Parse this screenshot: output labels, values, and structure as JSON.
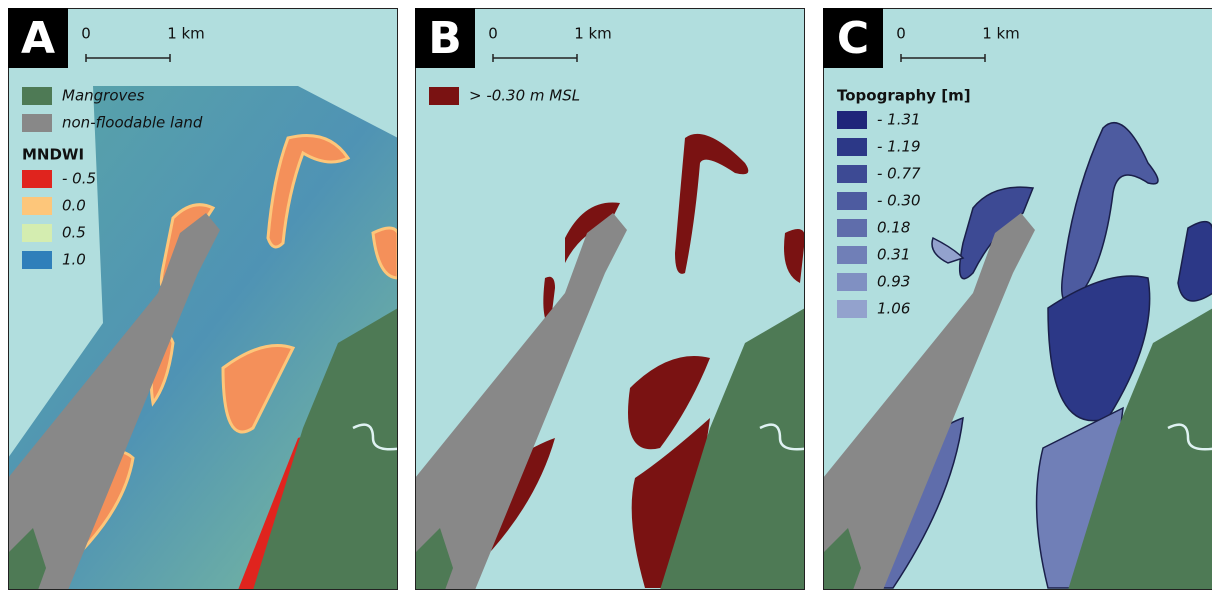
{
  "panels": [
    {
      "letter": "A",
      "scalebar": {
        "start": "0",
        "end": "1 km"
      },
      "legend": {
        "items": [
          {
            "label": "Mangroves",
            "color": "#4e7a55"
          },
          {
            "label": "non-floodable land",
            "color": "#888888"
          }
        ],
        "title": "MNDWI",
        "scale": [
          {
            "label": "- 0.5",
            "color": "#e0241e"
          },
          {
            "label": "0.0",
            "color": "#fdc67a"
          },
          {
            "label": "0.5",
            "color": "#d4edb0"
          },
          {
            "label": "1.0",
            "color": "#2f7fba"
          }
        ]
      }
    },
    {
      "letter": "B",
      "scalebar": {
        "start": "0",
        "end": "1 km"
      },
      "legend": {
        "items": [
          {
            "label": "> -0.30 m MSL",
            "color": "#7a1212"
          }
        ]
      }
    },
    {
      "letter": "C",
      "scalebar": {
        "start": "0",
        "end": "1 km"
      },
      "legend": {
        "title": "Topography [m]",
        "scale": [
          {
            "label": "- 1.31",
            "color": "#1f267a"
          },
          {
            "label": "- 1.19",
            "color": "#2c3887"
          },
          {
            "label": "- 0.77",
            "color": "#3d4a94"
          },
          {
            "label": "- 0.30",
            "color": "#4d5ba0"
          },
          {
            "label": "0.18",
            "color": "#5f6dab"
          },
          {
            "label": "0.31",
            "color": "#707fb7"
          },
          {
            "label": "0.93",
            "color": "#8090c2"
          },
          {
            "label": "1.06",
            "color": "#93a2cd"
          }
        ]
      }
    }
  ]
}
